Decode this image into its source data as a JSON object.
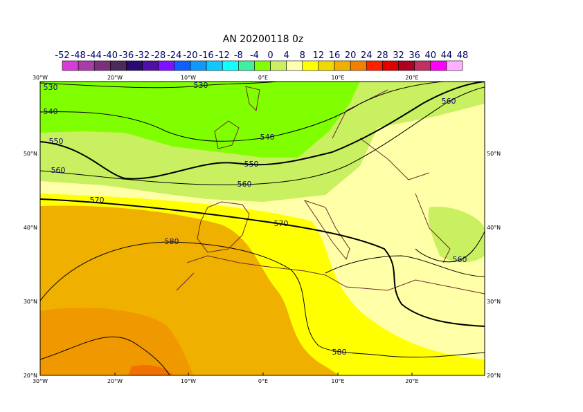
{
  "title": "AN  20200118 0z",
  "colorbar": {
    "labels": [
      -52,
      -48,
      -44,
      -40,
      -36,
      -32,
      -28,
      -24,
      -20,
      -16,
      -12,
      -8,
      -4,
      0,
      4,
      8,
      12,
      16,
      20,
      24,
      28,
      32,
      36,
      40,
      44,
      48
    ],
    "colors": [
      "#d83cd8",
      "#aa3caa",
      "#7c307c",
      "#4c2a5c",
      "#2a0a70",
      "#5010a8",
      "#8010ff",
      "#1060ff",
      "#1098ff",
      "#10c8ff",
      "#10ffff",
      "#40f0a0",
      "#80ff00",
      "#c8f060",
      "#ffffb0",
      "#ffff00",
      "#f0d800",
      "#f0b000",
      "#f08000",
      "#ff2000",
      "#e00000",
      "#b00020",
      "#c03060",
      "#ff00ff",
      "#ffb0ff"
    ]
  },
  "map": {
    "lon_labels": [
      "30°W",
      "20°W",
      "10°W",
      "0°E",
      "10°E",
      "20°E"
    ],
    "lat_labels": [
      "50°N",
      "40°N",
      "30°N",
      "20°N"
    ],
    "contour_labels": [
      "530",
      "530",
      "540",
      "540",
      "550",
      "550",
      "560",
      "560",
      "560",
      "560",
      "570",
      "570",
      "580",
      "580"
    ]
  }
}
